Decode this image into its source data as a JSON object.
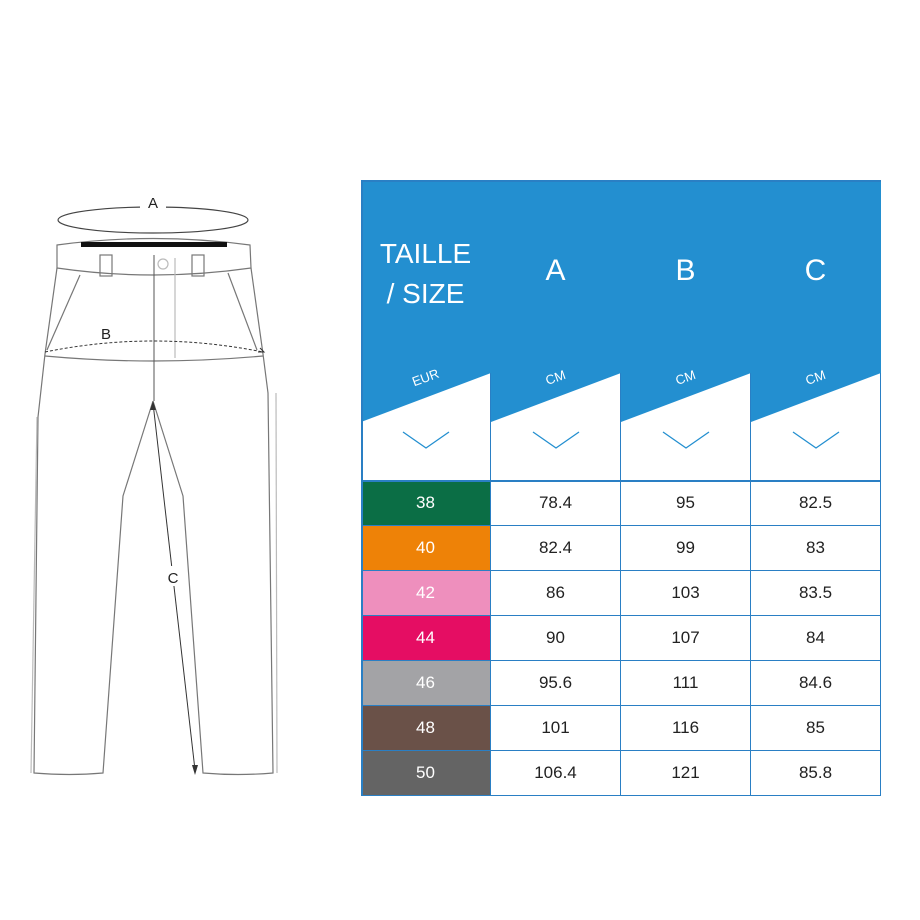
{
  "diagram": {
    "labels": {
      "a": "A",
      "b": "B",
      "c": "C"
    }
  },
  "table": {
    "header_color": "#238fd0",
    "border_color": "#2a7fc4",
    "columns": [
      {
        "title_line1": "TAILLE",
        "title_line2": "/ SIZE",
        "unit": "EUR",
        "icon": "chevron-down-icon"
      },
      {
        "title_line1": "A",
        "title_line2": "",
        "unit": "CM",
        "icon": "chevron-down-icon"
      },
      {
        "title_line1": "B",
        "title_line2": "",
        "unit": "CM",
        "icon": "chevron-down-icon"
      },
      {
        "title_line1": "C",
        "title_line2": "",
        "unit": "CM",
        "icon": "chevron-down-icon"
      }
    ],
    "rows": [
      {
        "size": "38",
        "color": "#0b6e45",
        "a": "78.4",
        "b": "95",
        "c": "82.5"
      },
      {
        "size": "40",
        "color": "#ee8207",
        "a": "82.4",
        "b": "99",
        "c": "83"
      },
      {
        "size": "42",
        "color": "#ee8fbd",
        "a": "86",
        "b": "103",
        "c": "83.5"
      },
      {
        "size": "44",
        "color": "#e50d63",
        "a": "90",
        "b": "107",
        "c": "84"
      },
      {
        "size": "46",
        "color": "#a3a3a6",
        "a": "95.6",
        "b": "111",
        "c": "84.6"
      },
      {
        "size": "48",
        "color": "#6a5148",
        "a": "101",
        "b": "116",
        "c": "85"
      },
      {
        "size": "50",
        "color": "#646464",
        "a": "106.4",
        "b": "121",
        "c": "85.8"
      }
    ]
  }
}
